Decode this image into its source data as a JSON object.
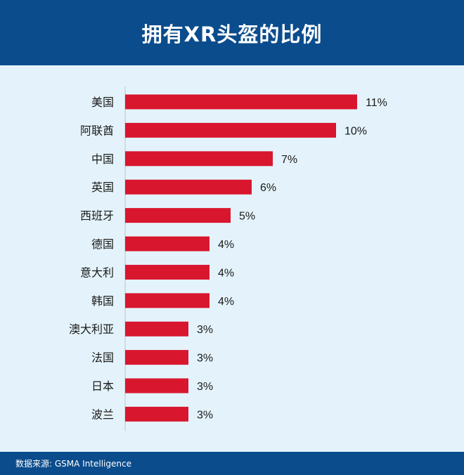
{
  "header": {
    "title": "拥有XR头盔的比例"
  },
  "footer": {
    "source": "数据来源: GSMA Intelligence"
  },
  "colors": {
    "bar": "#d8162e",
    "header_bg": "#0b4c8c",
    "background": "#e4f3fb"
  },
  "chart_data": {
    "type": "bar",
    "orientation": "horizontal",
    "title": "拥有XR头盔的比例",
    "categories": [
      "美国",
      "阿联酋",
      "中国",
      "英国",
      "西班牙",
      "德国",
      "意大利",
      "韩国",
      "澳大利亚",
      "法国",
      "日本",
      "波兰"
    ],
    "values": [
      11,
      10,
      7,
      6,
      5,
      4,
      4,
      4,
      3,
      3,
      3,
      3
    ],
    "value_labels": [
      "11%",
      "10%",
      "7%",
      "6%",
      "5%",
      "4%",
      "4%",
      "4%",
      "3%",
      "3%",
      "3%",
      "3%"
    ],
    "unit": "%",
    "xlim": [
      0,
      11
    ],
    "grid": false,
    "legend": "none"
  }
}
